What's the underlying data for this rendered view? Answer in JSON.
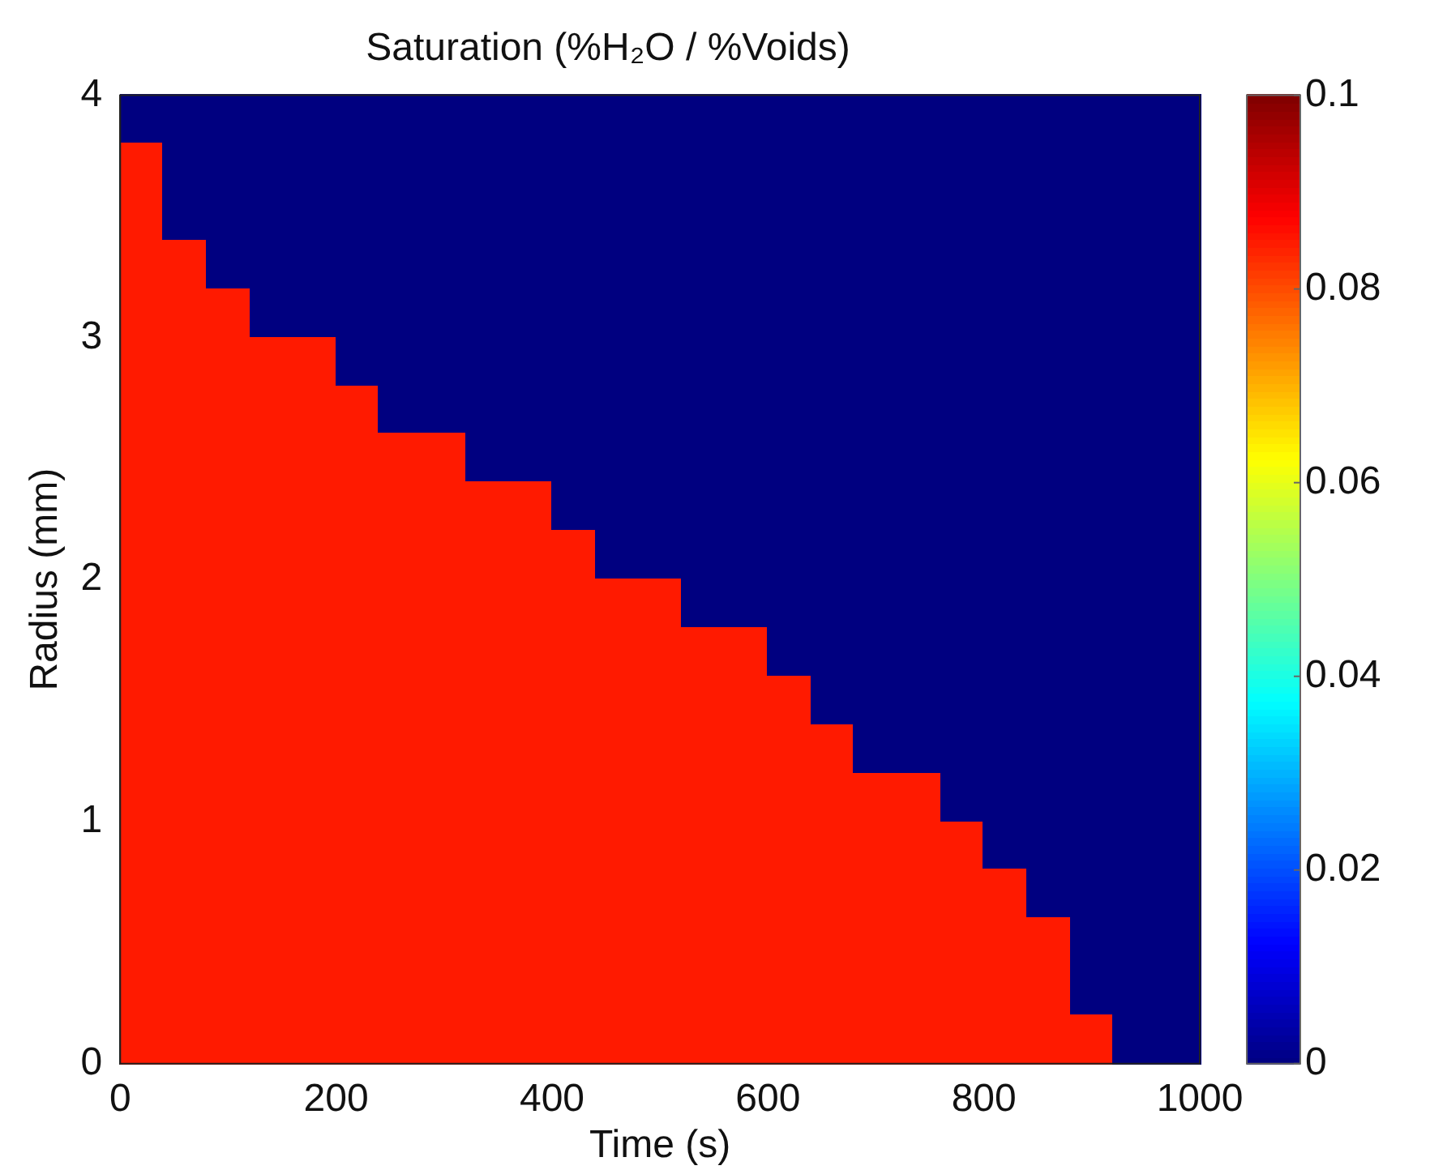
{
  "chart_data": {
    "type": "heatmap",
    "title": "Saturation (%H₂O / %Voids)",
    "xlabel": "Time (s)",
    "ylabel": "Radius (mm)",
    "x": [
      20,
      60,
      100,
      140,
      180,
      220,
      260,
      300,
      340,
      380,
      420,
      460,
      500,
      540,
      580,
      620,
      660,
      700,
      740,
      780,
      820,
      860,
      900,
      940,
      980
    ],
    "y": [
      3.9,
      3.7,
      3.5,
      3.3,
      3.1,
      2.9,
      2.7,
      2.5,
      2.3,
      2.1,
      1.9,
      1.7,
      1.5,
      1.3,
      1.1,
      0.9,
      0.7,
      0.5,
      0.3,
      0.1
    ],
    "cells": [
      [
        0,
        0,
        0,
        0,
        0,
        0,
        0,
        0,
        0,
        0,
        0,
        0,
        0,
        0,
        0,
        0,
        0,
        0,
        0,
        0,
        0,
        0,
        0,
        0,
        0
      ],
      [
        0.085,
        0,
        0,
        0,
        0,
        0,
        0,
        0,
        0,
        0,
        0,
        0,
        0,
        0,
        0,
        0,
        0,
        0,
        0,
        0,
        0,
        0,
        0,
        0,
        0
      ],
      [
        0.085,
        0,
        0,
        0,
        0,
        0,
        0,
        0,
        0,
        0,
        0,
        0,
        0,
        0,
        0,
        0,
        0,
        0,
        0,
        0,
        0,
        0,
        0,
        0,
        0
      ],
      [
        0.085,
        0.085,
        0,
        0,
        0,
        0,
        0,
        0,
        0,
        0,
        0,
        0,
        0,
        0,
        0,
        0,
        0,
        0,
        0,
        0,
        0,
        0,
        0,
        0,
        0
      ],
      [
        0.085,
        0.085,
        0.085,
        0,
        0,
        0,
        0,
        0,
        0,
        0,
        0,
        0,
        0,
        0,
        0,
        0,
        0,
        0,
        0,
        0,
        0,
        0,
        0,
        0,
        0
      ],
      [
        0.085,
        0.085,
        0.085,
        0.085,
        0.085,
        0,
        0,
        0,
        0,
        0,
        0,
        0,
        0,
        0,
        0,
        0,
        0,
        0,
        0,
        0,
        0,
        0,
        0,
        0,
        0
      ],
      [
        0.085,
        0.085,
        0.085,
        0.085,
        0.085,
        0.085,
        0,
        0,
        0,
        0,
        0,
        0,
        0,
        0,
        0,
        0,
        0,
        0,
        0,
        0,
        0,
        0,
        0,
        0,
        0
      ],
      [
        0.085,
        0.085,
        0.085,
        0.085,
        0.085,
        0.085,
        0.085,
        0.085,
        0,
        0,
        0,
        0,
        0,
        0,
        0,
        0,
        0,
        0,
        0,
        0,
        0,
        0,
        0,
        0,
        0
      ],
      [
        0.085,
        0.085,
        0.085,
        0.085,
        0.085,
        0.085,
        0.085,
        0.085,
        0.085,
        0.085,
        0,
        0,
        0,
        0,
        0,
        0,
        0,
        0,
        0,
        0,
        0,
        0,
        0,
        0,
        0
      ],
      [
        0.085,
        0.085,
        0.085,
        0.085,
        0.085,
        0.085,
        0.085,
        0.085,
        0.085,
        0.085,
        0.085,
        0,
        0,
        0,
        0,
        0,
        0,
        0,
        0,
        0,
        0,
        0,
        0,
        0,
        0
      ],
      [
        0.085,
        0.085,
        0.085,
        0.085,
        0.085,
        0.085,
        0.085,
        0.085,
        0.085,
        0.085,
        0.085,
        0.085,
        0.085,
        0,
        0,
        0,
        0,
        0,
        0,
        0,
        0,
        0,
        0,
        0,
        0
      ],
      [
        0.085,
        0.085,
        0.085,
        0.085,
        0.085,
        0.085,
        0.085,
        0.085,
        0.085,
        0.085,
        0.085,
        0.085,
        0.085,
        0.085,
        0.085,
        0,
        0,
        0,
        0,
        0,
        0,
        0,
        0,
        0,
        0
      ],
      [
        0.085,
        0.085,
        0.085,
        0.085,
        0.085,
        0.085,
        0.085,
        0.085,
        0.085,
        0.085,
        0.085,
        0.085,
        0.085,
        0.085,
        0.085,
        0.085,
        0,
        0,
        0,
        0,
        0,
        0,
        0,
        0,
        0
      ],
      [
        0.085,
        0.085,
        0.085,
        0.085,
        0.085,
        0.085,
        0.085,
        0.085,
        0.085,
        0.085,
        0.085,
        0.085,
        0.085,
        0.085,
        0.085,
        0.085,
        0.085,
        0,
        0,
        0,
        0,
        0,
        0,
        0,
        0
      ],
      [
        0.085,
        0.085,
        0.085,
        0.085,
        0.085,
        0.085,
        0.085,
        0.085,
        0.085,
        0.085,
        0.085,
        0.085,
        0.085,
        0.085,
        0.085,
        0.085,
        0.085,
        0.085,
        0.085,
        0,
        0,
        0,
        0,
        0,
        0
      ],
      [
        0.085,
        0.085,
        0.085,
        0.085,
        0.085,
        0.085,
        0.085,
        0.085,
        0.085,
        0.085,
        0.085,
        0.085,
        0.085,
        0.085,
        0.085,
        0.085,
        0.085,
        0.085,
        0.085,
        0.085,
        0,
        0,
        0,
        0,
        0
      ],
      [
        0.085,
        0.085,
        0.085,
        0.085,
        0.085,
        0.085,
        0.085,
        0.085,
        0.085,
        0.085,
        0.085,
        0.085,
        0.085,
        0.085,
        0.085,
        0.085,
        0.085,
        0.085,
        0.085,
        0.085,
        0.085,
        0,
        0,
        0,
        0
      ],
      [
        0.085,
        0.085,
        0.085,
        0.085,
        0.085,
        0.085,
        0.085,
        0.085,
        0.085,
        0.085,
        0.085,
        0.085,
        0.085,
        0.085,
        0.085,
        0.085,
        0.085,
        0.085,
        0.085,
        0.085,
        0.085,
        0.085,
        0,
        0,
        0
      ],
      [
        0.085,
        0.085,
        0.085,
        0.085,
        0.085,
        0.085,
        0.085,
        0.085,
        0.085,
        0.085,
        0.085,
        0.085,
        0.085,
        0.085,
        0.085,
        0.085,
        0.085,
        0.085,
        0.085,
        0.085,
        0.085,
        0.085,
        0,
        0,
        0
      ],
      [
        0.085,
        0.085,
        0.085,
        0.085,
        0.085,
        0.085,
        0.085,
        0.085,
        0.085,
        0.085,
        0.085,
        0.085,
        0.085,
        0.085,
        0.085,
        0.085,
        0.085,
        0.085,
        0.085,
        0.085,
        0.085,
        0.085,
        0.085,
        0,
        0
      ]
    ],
    "xlim": [
      0,
      1000
    ],
    "xticks": [
      0,
      200,
      400,
      600,
      800,
      1000
    ],
    "ylim": [
      0,
      4
    ],
    "yticks": [
      0,
      1,
      2,
      3,
      4
    ],
    "clim": [
      0,
      0.1
    ],
    "cticks": [
      0,
      0.02,
      0.04,
      0.06,
      0.08,
      0.1
    ]
  }
}
